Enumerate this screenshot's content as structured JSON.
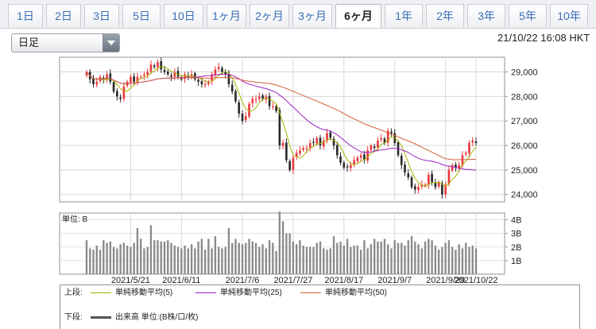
{
  "period_tabs": [
    {
      "label": "1日",
      "active": false
    },
    {
      "label": "2日",
      "active": false
    },
    {
      "label": "3日",
      "active": false
    },
    {
      "label": "5日",
      "active": false
    },
    {
      "label": "10日",
      "active": false
    },
    {
      "label": "1ヶ月",
      "active": false
    },
    {
      "label": "2ヶ月",
      "active": false
    },
    {
      "label": "3ヶ月",
      "active": false
    },
    {
      "label": "6ヶ月",
      "active": true
    },
    {
      "label": "1年",
      "active": false
    },
    {
      "label": "2年",
      "active": false
    },
    {
      "label": "3年",
      "active": false
    },
    {
      "label": "5年",
      "active": false
    },
    {
      "label": "10年",
      "active": false
    }
  ],
  "interval_select": {
    "value": "日足"
  },
  "timestamp": "21/10/22 16:08 HKT",
  "chart_data": [
    {
      "type": "candlestick",
      "y_ticks": [
        "29,000",
        "28,000",
        "27,000",
        "26,000",
        "25,000",
        "24,000"
      ],
      "y_tick_values": [
        29000,
        28000,
        27000,
        26000,
        25000,
        24000
      ],
      "ylim": [
        23700,
        29600
      ],
      "x_labels": [
        "2021/5/21",
        "2021/6/11",
        "2021/7/6",
        "2021/7/27",
        "2021/8/17",
        "2021/9/7",
        "2021/9/29",
        "2021/10/22"
      ],
      "closes": [
        29000,
        28700,
        28500,
        28600,
        28800,
        28700,
        28900,
        28600,
        28200,
        28000,
        27900,
        28400,
        28600,
        28800,
        28600,
        28800,
        28800,
        28900,
        29000,
        29300,
        29200,
        29400,
        29100,
        29000,
        28900,
        28800,
        29000,
        28800,
        28700,
        28900,
        28800,
        28900,
        28700,
        28600,
        28500,
        28500,
        28600,
        28900,
        29100,
        29200,
        29000,
        28900,
        28500,
        28200,
        27800,
        27300,
        27000,
        27200,
        27700,
        27900,
        27900,
        28000,
        27900,
        28000,
        27600,
        27600,
        27400,
        26000,
        26100,
        25400,
        25000,
        25500,
        25700,
        25800,
        25900,
        25900,
        26100,
        26100,
        26300,
        26000,
        26200,
        26500,
        26300,
        26000,
        25600,
        25300,
        25100,
        25100,
        25200,
        25400,
        25500,
        25600,
        25400,
        25800,
        26000,
        25900,
        26200,
        26300,
        26100,
        26600,
        26500,
        26100,
        25600,
        25200,
        24900,
        24700,
        24300,
        24200,
        24300,
        24400,
        24400,
        24800,
        24500,
        24300,
        24500,
        24000,
        24400,
        25000,
        25200,
        25100,
        25200,
        25600,
        25700,
        26100,
        26200,
        26100
      ],
      "volume_ticks": [
        "4B",
        "3B",
        "2B",
        "1B"
      ],
      "volume_tick_values": [
        4,
        3,
        2,
        1
      ],
      "volume_max": 4.5,
      "volumes": [
        2.5,
        1.9,
        1.8,
        2.1,
        1.8,
        2.5,
        2.3,
        2.4,
        2.0,
        1.9,
        2.2,
        2.3,
        2.1,
        2.0,
        2.3,
        3.4,
        2.6,
        1.9,
        2.0,
        3.6,
        2.5,
        2.5,
        2.4,
        2.4,
        2.5,
        2.3,
        2.1,
        2.0,
        1.9,
        2.1,
        1.9,
        2.2,
        1.9,
        2.4,
        2.6,
        1.8,
        2.6,
        1.9,
        2.8,
        2.0,
        1.9,
        2.0,
        3.4,
        2.3,
        2.6,
        2.3,
        2.2,
        2.3,
        2.6,
        2.4,
        2.3,
        2.0,
        2.2,
        1.9,
        2.5,
        2.3,
        1.7,
        4.6,
        3.9,
        3.0,
        3.0,
        2.4,
        2.2,
        2.5,
        2.1,
        2.0,
        2.0,
        2.0,
        2.3,
        2.4,
        1.9,
        1.8,
        1.9,
        2.8,
        2.3,
        2.4,
        2.1,
        2.6,
        2.0,
        2.1,
        2.1,
        1.8,
        2.5,
        1.9,
        2.2,
        2.6,
        2.4,
        2.4,
        2.6,
        2.2,
        1.9,
        2.5,
        2.3,
        2.3,
        2.1,
        2.5,
        2.8,
        2.4,
        2.2,
        1.9,
        2.4,
        2.6,
        2.5,
        2.1,
        1.8,
        2.0,
        2.3,
        2.5,
        2.0,
        1.8,
        2.2,
        1.9,
        2.3,
        2.0,
        2.1,
        1.9
      ]
    }
  ],
  "legend": {
    "top_header": "上段:",
    "bottom_header": "下段:",
    "items": [
      {
        "label": "単純移動平均(5)",
        "color": "#a8b400"
      },
      {
        "label": "単純移動平均(25)",
        "color": "#a01fc4"
      },
      {
        "label": "単純移動平均(50)",
        "color": "#d2603a"
      }
    ],
    "volume_label": "出来高 単位:(B株/口/枚)",
    "volume_color": "#555555"
  },
  "volume_panel": {
    "unit_label": "単位: B"
  },
  "colors": {
    "up": "#e8383d",
    "down": "#2a2a2a",
    "volume": "#8a8a8a",
    "accent": "#3b6fb6"
  }
}
